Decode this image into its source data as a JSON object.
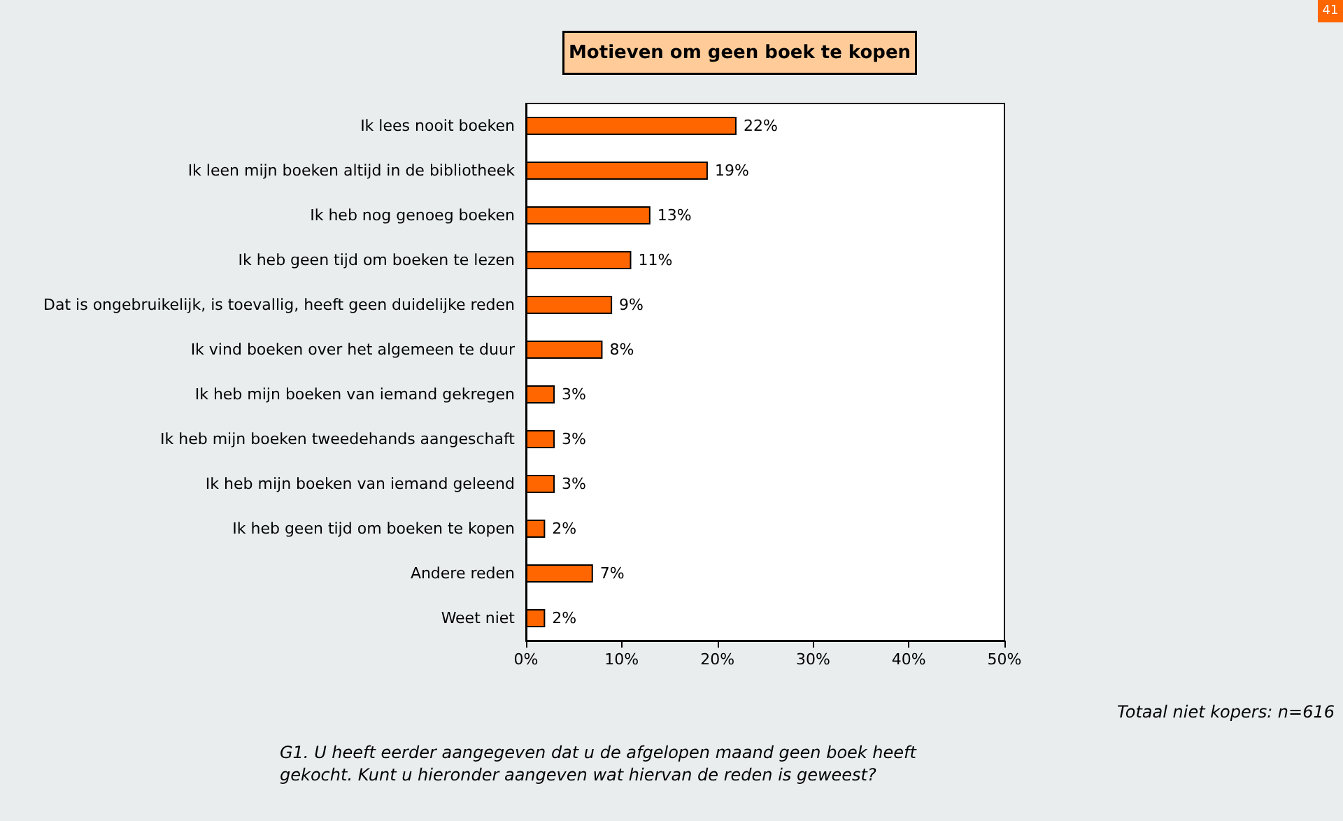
{
  "chart_data": {
    "type": "bar",
    "orientation": "horizontal",
    "title": "Motieven om geen boek te kopen",
    "categories": [
      "Ik lees nooit boeken",
      "Ik leen mijn boeken altijd in de bibliotheek",
      "Ik heb nog genoeg boeken",
      "Ik heb geen tijd om boeken te lezen",
      "Dat is ongebruikelijk, is toevallig, heeft geen duidelijke reden",
      "Ik vind boeken over het algemeen te duur",
      "Ik heb mijn boeken van iemand gekregen",
      "Ik heb mijn boeken tweedehands aangeschaft",
      "Ik heb mijn boeken van iemand geleend",
      "Ik heb geen tijd om boeken te kopen",
      "Andere reden",
      "Weet niet"
    ],
    "values": [
      22,
      19,
      13,
      11,
      9,
      8,
      3,
      3,
      3,
      2,
      7,
      2
    ],
    "value_labels": [
      "22%",
      "19%",
      "13%",
      "11%",
      "9%",
      "8%",
      "3%",
      "3%",
      "3%",
      "2%",
      "7%",
      "2%"
    ],
    "color": "#ff6600",
    "xlim": [
      0,
      50
    ],
    "xticks": [
      {
        "value": 0,
        "label": "0%"
      },
      {
        "value": 10,
        "label": "10%"
      },
      {
        "value": 20,
        "label": "20%"
      },
      {
        "value": 30,
        "label": "30%"
      },
      {
        "value": 40,
        "label": "40%"
      },
      {
        "value": 50,
        "label": "50%"
      }
    ],
    "grid": false,
    "annotations": [
      "41",
      "Totaal niet kopers: n=616",
      "G1. U heeft eerder aangegeven dat u de afgelopen maand geen boek heeft gekocht. Kunt u hieronder aangeven wat hiervan de reden is geweest?"
    ]
  }
}
